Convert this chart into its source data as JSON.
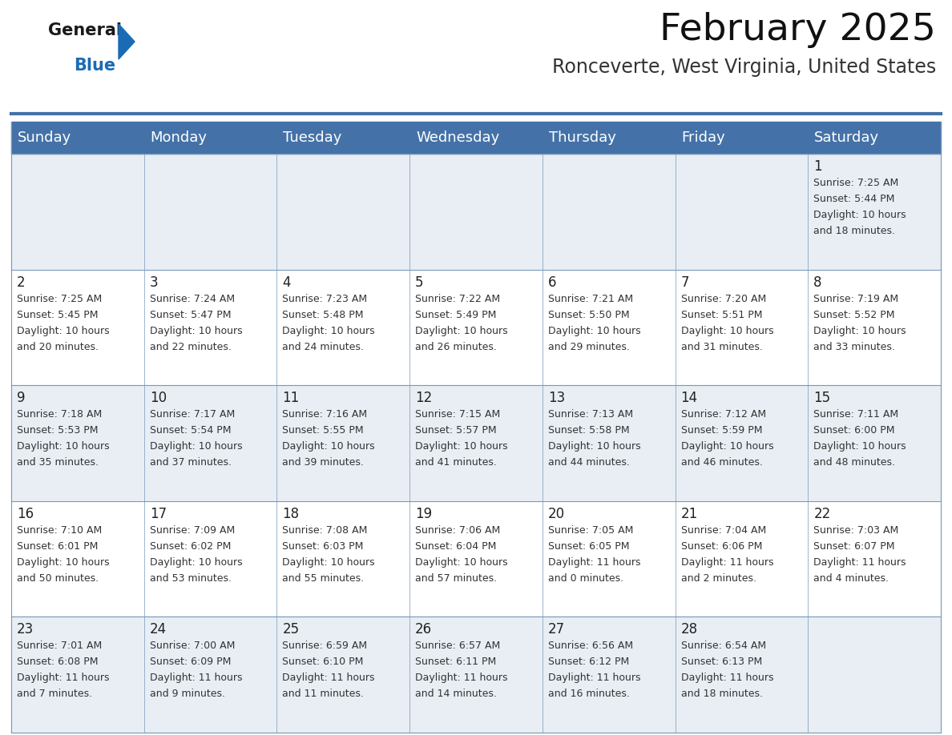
{
  "title": "February 2025",
  "subtitle": "Ronceverte, West Virginia, United States",
  "header_bg": "#4472a8",
  "header_text_color": "#ffffff",
  "cell_bg_light": "#e8eef4",
  "cell_bg_white": "#ffffff",
  "border_color": "#7799bb",
  "day_headers": [
    "Sunday",
    "Monday",
    "Tuesday",
    "Wednesday",
    "Thursday",
    "Friday",
    "Saturday"
  ],
  "title_fontsize": 34,
  "subtitle_fontsize": 17,
  "header_fontsize": 13,
  "day_num_fontsize": 12,
  "info_fontsize": 9,
  "logo_general_color": "#1a1a1a",
  "logo_blue_color": "#1a6bb5",
  "weeks": [
    [
      {
        "day": null,
        "sunrise": null,
        "sunset": null,
        "daylight_h": null,
        "daylight_m": null
      },
      {
        "day": null,
        "sunrise": null,
        "sunset": null,
        "daylight_h": null,
        "daylight_m": null
      },
      {
        "day": null,
        "sunrise": null,
        "sunset": null,
        "daylight_h": null,
        "daylight_m": null
      },
      {
        "day": null,
        "sunrise": null,
        "sunset": null,
        "daylight_h": null,
        "daylight_m": null
      },
      {
        "day": null,
        "sunrise": null,
        "sunset": null,
        "daylight_h": null,
        "daylight_m": null
      },
      {
        "day": null,
        "sunrise": null,
        "sunset": null,
        "daylight_h": null,
        "daylight_m": null
      },
      {
        "day": 1,
        "sunrise": "7:25 AM",
        "sunset": "5:44 PM",
        "daylight_h": "10 hours",
        "daylight_m": "and 18 minutes."
      }
    ],
    [
      {
        "day": 2,
        "sunrise": "7:25 AM",
        "sunset": "5:45 PM",
        "daylight_h": "10 hours",
        "daylight_m": "and 20 minutes."
      },
      {
        "day": 3,
        "sunrise": "7:24 AM",
        "sunset": "5:47 PM",
        "daylight_h": "10 hours",
        "daylight_m": "and 22 minutes."
      },
      {
        "day": 4,
        "sunrise": "7:23 AM",
        "sunset": "5:48 PM",
        "daylight_h": "10 hours",
        "daylight_m": "and 24 minutes."
      },
      {
        "day": 5,
        "sunrise": "7:22 AM",
        "sunset": "5:49 PM",
        "daylight_h": "10 hours",
        "daylight_m": "and 26 minutes."
      },
      {
        "day": 6,
        "sunrise": "7:21 AM",
        "sunset": "5:50 PM",
        "daylight_h": "10 hours",
        "daylight_m": "and 29 minutes."
      },
      {
        "day": 7,
        "sunrise": "7:20 AM",
        "sunset": "5:51 PM",
        "daylight_h": "10 hours",
        "daylight_m": "and 31 minutes."
      },
      {
        "day": 8,
        "sunrise": "7:19 AM",
        "sunset": "5:52 PM",
        "daylight_h": "10 hours",
        "daylight_m": "and 33 minutes."
      }
    ],
    [
      {
        "day": 9,
        "sunrise": "7:18 AM",
        "sunset": "5:53 PM",
        "daylight_h": "10 hours",
        "daylight_m": "and 35 minutes."
      },
      {
        "day": 10,
        "sunrise": "7:17 AM",
        "sunset": "5:54 PM",
        "daylight_h": "10 hours",
        "daylight_m": "and 37 minutes."
      },
      {
        "day": 11,
        "sunrise": "7:16 AM",
        "sunset": "5:55 PM",
        "daylight_h": "10 hours",
        "daylight_m": "and 39 minutes."
      },
      {
        "day": 12,
        "sunrise": "7:15 AM",
        "sunset": "5:57 PM",
        "daylight_h": "10 hours",
        "daylight_m": "and 41 minutes."
      },
      {
        "day": 13,
        "sunrise": "7:13 AM",
        "sunset": "5:58 PM",
        "daylight_h": "10 hours",
        "daylight_m": "and 44 minutes."
      },
      {
        "day": 14,
        "sunrise": "7:12 AM",
        "sunset": "5:59 PM",
        "daylight_h": "10 hours",
        "daylight_m": "and 46 minutes."
      },
      {
        "day": 15,
        "sunrise": "7:11 AM",
        "sunset": "6:00 PM",
        "daylight_h": "10 hours",
        "daylight_m": "and 48 minutes."
      }
    ],
    [
      {
        "day": 16,
        "sunrise": "7:10 AM",
        "sunset": "6:01 PM",
        "daylight_h": "10 hours",
        "daylight_m": "and 50 minutes."
      },
      {
        "day": 17,
        "sunrise": "7:09 AM",
        "sunset": "6:02 PM",
        "daylight_h": "10 hours",
        "daylight_m": "and 53 minutes."
      },
      {
        "day": 18,
        "sunrise": "7:08 AM",
        "sunset": "6:03 PM",
        "daylight_h": "10 hours",
        "daylight_m": "and 55 minutes."
      },
      {
        "day": 19,
        "sunrise": "7:06 AM",
        "sunset": "6:04 PM",
        "daylight_h": "10 hours",
        "daylight_m": "and 57 minutes."
      },
      {
        "day": 20,
        "sunrise": "7:05 AM",
        "sunset": "6:05 PM",
        "daylight_h": "11 hours",
        "daylight_m": "and 0 minutes."
      },
      {
        "day": 21,
        "sunrise": "7:04 AM",
        "sunset": "6:06 PM",
        "daylight_h": "11 hours",
        "daylight_m": "and 2 minutes."
      },
      {
        "day": 22,
        "sunrise": "7:03 AM",
        "sunset": "6:07 PM",
        "daylight_h": "11 hours",
        "daylight_m": "and 4 minutes."
      }
    ],
    [
      {
        "day": 23,
        "sunrise": "7:01 AM",
        "sunset": "6:08 PM",
        "daylight_h": "11 hours",
        "daylight_m": "and 7 minutes."
      },
      {
        "day": 24,
        "sunrise": "7:00 AM",
        "sunset": "6:09 PM",
        "daylight_h": "11 hours",
        "daylight_m": "and 9 minutes."
      },
      {
        "day": 25,
        "sunrise": "6:59 AM",
        "sunset": "6:10 PM",
        "daylight_h": "11 hours",
        "daylight_m": "and 11 minutes."
      },
      {
        "day": 26,
        "sunrise": "6:57 AM",
        "sunset": "6:11 PM",
        "daylight_h": "11 hours",
        "daylight_m": "and 14 minutes."
      },
      {
        "day": 27,
        "sunrise": "6:56 AM",
        "sunset": "6:12 PM",
        "daylight_h": "11 hours",
        "daylight_m": "and 16 minutes."
      },
      {
        "day": 28,
        "sunrise": "6:54 AM",
        "sunset": "6:13 PM",
        "daylight_h": "11 hours",
        "daylight_m": "and 18 minutes."
      },
      {
        "day": null,
        "sunrise": null,
        "sunset": null,
        "daylight_h": null,
        "daylight_m": null
      }
    ]
  ]
}
